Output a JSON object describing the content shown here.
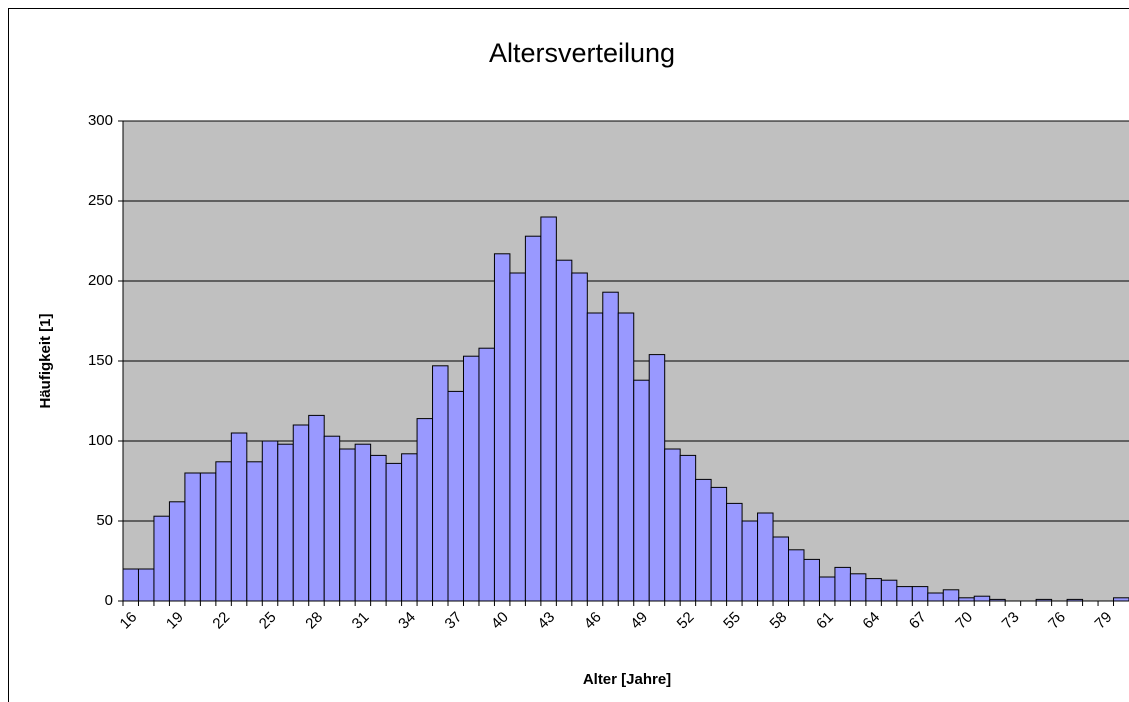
{
  "chart_data": {
    "type": "bar",
    "title": "Altersverteilung",
    "x_label": "Alter [Jahre]",
    "y_label": "Häufigkeit [1]",
    "categories": [
      "16",
      null,
      null,
      "19",
      null,
      null,
      "22",
      null,
      null,
      "25",
      null,
      null,
      "28",
      null,
      null,
      "31",
      null,
      null,
      "34",
      null,
      null,
      "37",
      null,
      null,
      "40",
      null,
      null,
      "43",
      null,
      null,
      "46",
      null,
      null,
      "49",
      null,
      null,
      "52",
      null,
      null,
      "55",
      null,
      null,
      "58",
      null,
      null,
      "61",
      null,
      null,
      "64",
      null,
      null,
      "67",
      null,
      null,
      "70",
      null,
      null,
      "73",
      null,
      null,
      "76",
      null,
      null,
      "79",
      null
    ],
    "values": [
      20,
      20,
      53,
      62,
      80,
      80,
      87,
      105,
      87,
      100,
      98,
      110,
      116,
      103,
      95,
      98,
      91,
      86,
      92,
      114,
      147,
      131,
      153,
      158,
      217,
      205,
      228,
      240,
      213,
      205,
      180,
      193,
      180,
      138,
      154,
      95,
      91,
      76,
      71,
      61,
      50,
      55,
      40,
      32,
      26,
      15,
      21,
      17,
      14,
      13,
      9,
      9,
      5,
      7,
      2,
      3,
      1,
      0,
      0,
      1,
      0,
      1,
      0,
      0,
      2
    ],
    "color": "#9999ff",
    "plot_background": "#c0c0c0",
    "ylim": [
      0,
      300
    ],
    "yticks": [
      0,
      50,
      100,
      150,
      200,
      250,
      300
    ],
    "grid": true
  }
}
